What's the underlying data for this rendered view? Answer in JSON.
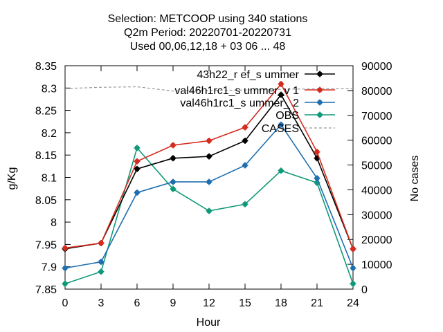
{
  "chart_data": {
    "type": "line",
    "title": [
      "Selection: METCOOP using   340 stations",
      "Q2m   Period: 20220701-20220731",
      "Used  00,06,12,18 + 03 06 ... 48"
    ],
    "xlabel": "Hour",
    "ylabel": "g/Kg",
    "y2label": "No cases",
    "x": [
      0,
      3,
      6,
      9,
      12,
      15,
      18,
      21,
      24
    ],
    "xticks": [
      "0",
      "3",
      "6",
      "9",
      "12",
      "15",
      "18",
      "21",
      "24"
    ],
    "xlim": [
      0,
      24
    ],
    "ylim": [
      7.85,
      8.35
    ],
    "yticks": [
      "7.85",
      "7.9",
      "7.95",
      "8",
      "8.05",
      "8.1",
      "8.15",
      "8.2",
      "8.25",
      "8.3",
      "8.35"
    ],
    "y2lim": [
      0,
      90000
    ],
    "y2ticks": [
      "0",
      "10000",
      "20000",
      "30000",
      "40000",
      "50000",
      "60000",
      "70000",
      "80000",
      "90000"
    ],
    "legend_position": "top-right",
    "grid": false,
    "series": [
      {
        "name": "43h22_r ef_s ummer",
        "color": "#000000",
        "marker": "plus-circle",
        "values": [
          7.94,
          7.953,
          8.119,
          8.143,
          8.147,
          8.182,
          8.285,
          8.143,
          7.94
        ]
      },
      {
        "name": "val46h1rc1_s ummer_v 1",
        "color": "#d62b1f",
        "marker": "plus-circle",
        "values": [
          7.942,
          7.953,
          8.136,
          8.172,
          8.182,
          8.212,
          8.309,
          8.157,
          7.94
        ]
      },
      {
        "name": "val46h1rc1_s ummer_ 2",
        "color": "#1f6fb0",
        "marker": "plus-circle",
        "values": [
          7.897,
          7.911,
          8.066,
          8.09,
          8.09,
          8.127,
          8.218,
          8.098,
          7.897
        ]
      },
      {
        "name": "OBS",
        "color": "#109978",
        "marker": "plus-circle",
        "values": [
          7.862,
          7.889,
          8.166,
          8.074,
          8.025,
          8.04,
          8.115,
          8.088,
          7.862
        ]
      },
      {
        "name": "CASES",
        "color": "#999999",
        "dashed": true,
        "axis": "y2",
        "values": [
          80800,
          81300,
          81500,
          79800,
          80000,
          80200,
          80500,
          80700,
          80900
        ]
      }
    ]
  }
}
